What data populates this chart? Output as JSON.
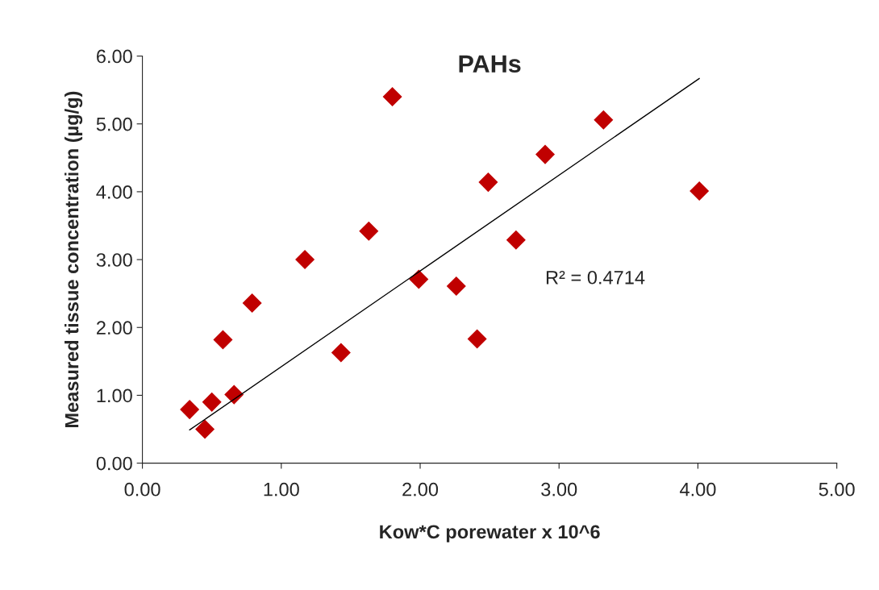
{
  "chart_data": {
    "type": "scatter",
    "title": "PAHs",
    "xlabel": "Kow*C porewater x 10^6",
    "ylabel": "Measured tissue concentration (µg/g)",
    "xlim": [
      0,
      5
    ],
    "ylim": [
      0,
      6
    ],
    "xticks": [
      {
        "value": 0,
        "label": "0.00"
      },
      {
        "value": 1,
        "label": "1.00"
      },
      {
        "value": 2,
        "label": "2.00"
      },
      {
        "value": 3,
        "label": "3.00"
      },
      {
        "value": 4,
        "label": "4.00"
      },
      {
        "value": 5,
        "label": "5.00"
      }
    ],
    "yticks": [
      {
        "value": 0,
        "label": "0.00"
      },
      {
        "value": 1,
        "label": "1.00"
      },
      {
        "value": 2,
        "label": "2.00"
      },
      {
        "value": 3,
        "label": "3.00"
      },
      {
        "value": 4,
        "label": "4.00"
      },
      {
        "value": 5,
        "label": "5.00"
      },
      {
        "value": 6,
        "label": "6.00"
      }
    ],
    "grid": false,
    "legend": false,
    "series": [
      {
        "marker": "diamond",
        "color": "#c00000",
        "x": [
          0.34,
          0.45,
          0.5,
          0.58,
          0.66,
          0.79,
          1.17,
          1.43,
          1.63,
          1.8,
          1.99,
          2.26,
          2.41,
          2.49,
          2.69,
          2.9,
          3.32,
          4.01
        ],
        "values": [
          0.79,
          0.5,
          0.9,
          1.82,
          1.01,
          2.36,
          3.0,
          1.63,
          3.42,
          5.4,
          2.71,
          2.61,
          1.83,
          4.14,
          3.29,
          4.55,
          5.06,
          4.01
        ]
      },
      {
        "type": "line",
        "color": "#000000",
        "x": [
          0.34,
          4.01
        ],
        "values": [
          0.49,
          5.67
        ]
      }
    ],
    "annotations": [
      "R² = 0.4714"
    ]
  }
}
